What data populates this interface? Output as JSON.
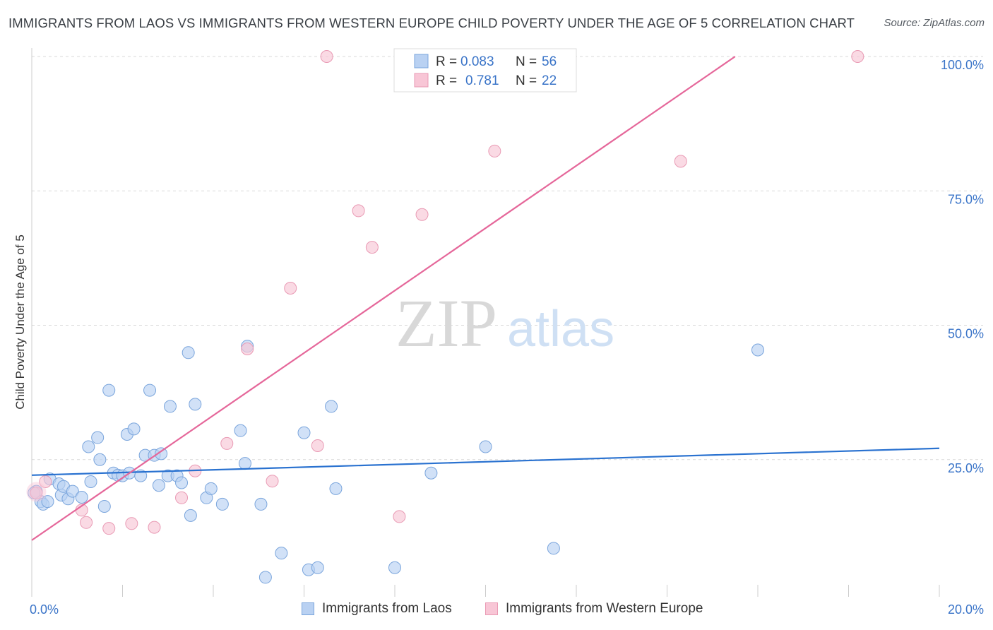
{
  "title": "IMMIGRANTS FROM LAOS VS IMMIGRANTS FROM WESTERN EUROPE CHILD POVERTY UNDER THE AGE OF 5 CORRELATION CHART",
  "source": "Source: ZipAtlas.com",
  "watermark": {
    "zip": "ZIP",
    "atlas": "atlas"
  },
  "legend_top": [
    {
      "r_label": "R =",
      "r_value": "0.083",
      "n_label": "N =",
      "n_value": "56"
    },
    {
      "r_label": "R =",
      "r_value": "0.781",
      "n_label": "N =",
      "n_value": "22"
    }
  ],
  "legend_bottom": [
    "Immigrants from Laos",
    "Immigrants from Western Europe"
  ],
  "colors": {
    "blue_fill": "#b9d1f2",
    "blue_stroke": "#7aa5dc",
    "blue_line": "#2a72d0",
    "pink_fill": "#f8c6d6",
    "pink_stroke": "#e99ab4",
    "pink_line": "#e5679a",
    "axis_label": "#3a74c8",
    "grid": "#d9d9d9"
  },
  "chart_data": {
    "type": "scatter",
    "title": "IMMIGRANTS FROM LAOS VS IMMIGRANTS FROM WESTERN EUROPE CHILD POVERTY UNDER THE AGE OF 5 CORRELATION CHART",
    "xlabel": "",
    "ylabel": "Child Poverty Under the Age of 5",
    "xlim": [
      0,
      20
    ],
    "ylim": [
      0,
      100
    ],
    "x_tick_labels": [
      "0.0%",
      "20.0%"
    ],
    "y_tick_labels": [
      "25.0%",
      "50.0%",
      "75.0%",
      "100.0%"
    ],
    "y_ticks": [
      25,
      50,
      75,
      100
    ],
    "grid": true,
    "legend_position": "top-center",
    "series": [
      {
        "name": "Immigrants from Laos",
        "color": "#b9d1f2",
        "r": 0.083,
        "n": 56,
        "trend": {
          "x": [
            0,
            20
          ],
          "y": [
            22.1,
            27.1
          ]
        },
        "points": [
          [
            0.1,
            19.1
          ],
          [
            0.2,
            17.2
          ],
          [
            0.25,
            16.7
          ],
          [
            0.35,
            17.2
          ],
          [
            0.4,
            21.4
          ],
          [
            0.6,
            20.5
          ],
          [
            0.65,
            18.4
          ],
          [
            0.7,
            20.0
          ],
          [
            0.8,
            17.7
          ],
          [
            0.9,
            19.1
          ],
          [
            1.1,
            18.0
          ],
          [
            1.25,
            27.4
          ],
          [
            1.3,
            20.9
          ],
          [
            1.45,
            29.1
          ],
          [
            1.5,
            25.0
          ],
          [
            1.6,
            16.3
          ],
          [
            1.7,
            37.9
          ],
          [
            1.8,
            22.5
          ],
          [
            1.9,
            22.1
          ],
          [
            2.0,
            22.0
          ],
          [
            2.1,
            29.7
          ],
          [
            2.15,
            22.5
          ],
          [
            2.25,
            30.7
          ],
          [
            2.4,
            22.0
          ],
          [
            2.5,
            25.8
          ],
          [
            2.6,
            37.9
          ],
          [
            2.7,
            25.8
          ],
          [
            2.8,
            20.2
          ],
          [
            2.85,
            26.1
          ],
          [
            3.0,
            22.0
          ],
          [
            3.05,
            34.9
          ],
          [
            3.2,
            22.0
          ],
          [
            3.3,
            20.7
          ],
          [
            3.45,
            44.9
          ],
          [
            3.5,
            14.6
          ],
          [
            3.6,
            35.3
          ],
          [
            3.85,
            17.9
          ],
          [
            3.95,
            19.6
          ],
          [
            4.2,
            16.7
          ],
          [
            4.6,
            30.4
          ],
          [
            4.7,
            24.3
          ],
          [
            4.75,
            46.1
          ],
          [
            5.05,
            16.7
          ],
          [
            5.15,
            3.1
          ],
          [
            5.5,
            7.6
          ],
          [
            6.0,
            30.0
          ],
          [
            6.1,
            4.5
          ],
          [
            6.3,
            4.9
          ],
          [
            6.6,
            34.9
          ],
          [
            6.7,
            19.6
          ],
          [
            8.0,
            4.9
          ],
          [
            8.8,
            22.5
          ],
          [
            10.0,
            27.4
          ],
          [
            11.5,
            8.5
          ],
          [
            16.0,
            45.4
          ],
          [
            0.05,
            18.8
          ]
        ]
      },
      {
        "name": "Immigrants from Western Europe",
        "color": "#f8c6d6",
        "r": 0.781,
        "n": 22,
        "trend": {
          "x": [
            0,
            15.5
          ],
          "y": [
            10.0,
            100.0
          ]
        },
        "points": [
          [
            0.1,
            18.8
          ],
          [
            0.3,
            20.9
          ],
          [
            1.1,
            15.6
          ],
          [
            1.2,
            13.3
          ],
          [
            1.7,
            12.2
          ],
          [
            2.2,
            13.1
          ],
          [
            2.7,
            12.4
          ],
          [
            3.3,
            17.9
          ],
          [
            3.6,
            22.9
          ],
          [
            4.3,
            28.0
          ],
          [
            4.75,
            45.6
          ],
          [
            5.3,
            21.0
          ],
          [
            5.7,
            56.9
          ],
          [
            6.3,
            27.6
          ],
          [
            6.5,
            100.0
          ],
          [
            7.2,
            71.3
          ],
          [
            7.5,
            64.5
          ],
          [
            8.1,
            14.4
          ],
          [
            8.6,
            70.6
          ],
          [
            10.2,
            82.4
          ],
          [
            14.3,
            80.5
          ],
          [
            18.2,
            100.0
          ]
        ]
      }
    ]
  }
}
